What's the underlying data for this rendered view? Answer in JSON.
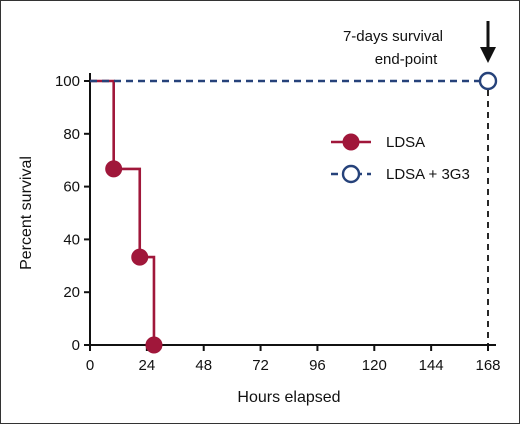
{
  "chart_data": {
    "type": "line",
    "xlabel": "Hours elapsed",
    "ylabel": "Percent survival",
    "xlim": [
      0,
      168
    ],
    "ylim": [
      0,
      100
    ],
    "xticks": [
      0,
      24,
      48,
      72,
      96,
      120,
      144,
      168
    ],
    "yticks": [
      0,
      20,
      40,
      60,
      80,
      100
    ],
    "grid": false,
    "legend_position": "right",
    "series": [
      {
        "name": "LDSA",
        "color": "#a0173a",
        "line_style": "solid",
        "marker": "filled-circle",
        "step_x": [
          0,
          10,
          10,
          21,
          21,
          27,
          27
        ],
        "step_y": [
          100,
          100,
          66.7,
          66.7,
          33.3,
          33.3,
          0
        ],
        "points": [
          {
            "x": 10,
            "y": 66.7
          },
          {
            "x": 21,
            "y": 33.3
          },
          {
            "x": 27,
            "y": 0
          }
        ]
      },
      {
        "name": "LDSA + 3G3",
        "color": "#26427a",
        "line_style": "dashed",
        "marker": "open-circle",
        "step_x": [
          0,
          168
        ],
        "step_y": [
          100,
          100
        ],
        "points": [
          {
            "x": 168,
            "y": 100
          }
        ]
      }
    ],
    "annotations": [
      {
        "text_line1": "7-days survival",
        "text_line2": "end-point",
        "x": 168,
        "arrow": "down"
      }
    ]
  }
}
